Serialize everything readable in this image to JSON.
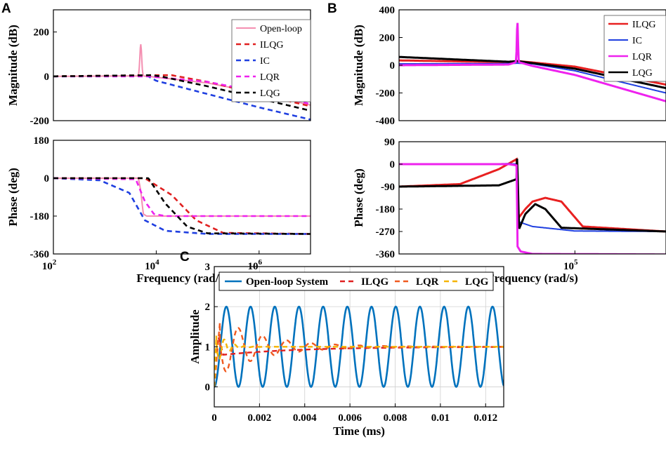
{
  "panels": {
    "A": "A",
    "B": "B",
    "C": "C"
  },
  "chart_data": [
    {
      "id": "A-magnitude",
      "type": "line",
      "xscale": "log",
      "xlim": [
        100,
        10000000
      ],
      "ylim": [
        -200,
        300
      ],
      "ylabel": "Magnitude (dB)",
      "yticks": [
        {
          "v": 200,
          "t": "200"
        },
        {
          "v": 0,
          "t": "0"
        },
        {
          "v": -200,
          "t": "-200"
        }
      ],
      "legend": [
        "Open-loop",
        "ILQG",
        "IC",
        "LQR",
        "LQG"
      ],
      "series": [
        {
          "name": "Open-loop",
          "color": "#f48fb1",
          "dash": "",
          "width": 2,
          "resonance": {
            "x": 5000,
            "peak": 145,
            "w": 0.025
          },
          "points": [
            [
              100,
              0
            ],
            [
              5000,
              2
            ],
            [
              7000,
              0
            ],
            [
              100000,
              -30
            ],
            [
              1000000,
              -75
            ],
            [
              10000000,
              -130
            ]
          ]
        },
        {
          "name": "ILQG",
          "color": "#e02020",
          "dash": "7,5",
          "width": 2.6,
          "points": [
            [
              100,
              0
            ],
            [
              8000,
              5
            ],
            [
              20000,
              5
            ],
            [
              100000,
              -25
            ],
            [
              1000000,
              -80
            ],
            [
              10000000,
              -135
            ]
          ]
        },
        {
          "name": "IC",
          "color": "#1f3fe0",
          "dash": "7,5",
          "width": 2.6,
          "points": [
            [
              100,
              0
            ],
            [
              7000,
              0
            ],
            [
              10000,
              -20
            ],
            [
              100000,
              -80
            ],
            [
              1000000,
              -140
            ],
            [
              10000000,
              -195
            ]
          ]
        },
        {
          "name": "LQR",
          "color": "#ee22ee",
          "dash": "7,5",
          "width": 2.6,
          "points": [
            [
              100,
              0
            ],
            [
              7000,
              0
            ],
            [
              100000,
              -25
            ],
            [
              1000000,
              -70
            ],
            [
              10000000,
              -125
            ]
          ]
        },
        {
          "name": "LQG",
          "color": "#000000",
          "dash": "7,5",
          "width": 2.6,
          "points": [
            [
              100,
              0
            ],
            [
              8000,
              5
            ],
            [
              12000,
              0
            ],
            [
              100000,
              -45
            ],
            [
              1000000,
              -100
            ],
            [
              10000000,
              -155
            ]
          ]
        }
      ]
    },
    {
      "id": "A-phase",
      "type": "line",
      "xscale": "log",
      "xlim": [
        100,
        10000000
      ],
      "ylim": [
        -360,
        180
      ],
      "ylabel": "Phase (deg)",
      "xlabel": "Frequency (rad/s)",
      "yticks": [
        {
          "v": 180,
          "t": "180"
        },
        {
          "v": 0,
          "t": "0"
        },
        {
          "v": -180,
          "t": "-180"
        },
        {
          "v": -360,
          "t": "-360"
        }
      ],
      "xticks": [
        {
          "base": "10",
          "exp": "2",
          "v": 100
        },
        {
          "base": "10",
          "exp": "4",
          "v": 10000
        },
        {
          "base": "10",
          "exp": "6",
          "v": 1000000
        }
      ],
      "series": [
        {
          "name": "Open-loop",
          "color": "#f48fb1",
          "dash": "",
          "width": 2,
          "points": [
            [
              100,
              0
            ],
            [
              4500,
              0
            ],
            [
              5000,
              -60
            ],
            [
              5600,
              -170
            ],
            [
              6500,
              -180
            ],
            [
              10000000,
              -180
            ]
          ]
        },
        {
          "name": "ILQG",
          "color": "#e02020",
          "dash": "7,5",
          "width": 2.6,
          "points": [
            [
              100,
              0
            ],
            [
              6000,
              0
            ],
            [
              20000,
              -80
            ],
            [
              60000,
              -200
            ],
            [
              200000,
              -260
            ],
            [
              10000000,
              -265
            ]
          ]
        },
        {
          "name": "IC",
          "color": "#1f3fe0",
          "dash": "7,5",
          "width": 2.6,
          "points": [
            [
              100,
              0
            ],
            [
              800,
              -10
            ],
            [
              3000,
              -70
            ],
            [
              6000,
              -200
            ],
            [
              15000,
              -250
            ],
            [
              100000,
              -265
            ],
            [
              10000000,
              -265
            ]
          ]
        },
        {
          "name": "LQR",
          "color": "#ee22ee",
          "dash": "7,5",
          "width": 2.6,
          "points": [
            [
              100,
              0
            ],
            [
              4000,
              -5
            ],
            [
              6000,
              -110
            ],
            [
              9000,
              -170
            ],
            [
              15000,
              -180
            ],
            [
              10000000,
              -180
            ]
          ]
        },
        {
          "name": "LQG",
          "color": "#000000",
          "dash": "7,5",
          "width": 2.6,
          "points": [
            [
              100,
              0
            ],
            [
              7000,
              0
            ],
            [
              15000,
              -120
            ],
            [
              40000,
              -230
            ],
            [
              100000,
              -262
            ],
            [
              10000000,
              -265
            ]
          ]
        }
      ]
    },
    {
      "id": "B-magnitude",
      "type": "line",
      "xscale": "log",
      "xlim": [
        12000,
        300000
      ],
      "ylim": [
        -400,
        400
      ],
      "ylabel": "Magnitude (dB)",
      "yticks": [
        {
          "v": 400,
          "t": "400"
        },
        {
          "v": 200,
          "t": "200"
        },
        {
          "v": 0,
          "t": "0"
        },
        {
          "v": -200,
          "t": "-200"
        },
        {
          "v": -400,
          "t": "-400"
        }
      ],
      "legend": [
        "ILQG",
        "IC",
        "LQR",
        "LQG"
      ],
      "series": [
        {
          "name": "ILQG",
          "color": "#e82020",
          "dash": "",
          "width": 3,
          "points": [
            [
              12000,
              35
            ],
            [
              45000,
              22
            ],
            [
              50000,
              30
            ],
            [
              60000,
              20
            ],
            [
              100000,
              -10
            ],
            [
              300000,
              -140
            ]
          ]
        },
        {
          "name": "IC",
          "color": "#1f3fe0",
          "dash": "",
          "width": 2,
          "points": [
            [
              12000,
              10
            ],
            [
              45000,
              12
            ],
            [
              50000,
              15
            ],
            [
              60000,
              10
            ],
            [
              100000,
              -40
            ],
            [
              300000,
              -200
            ]
          ]
        },
        {
          "name": "LQG",
          "color": "#000000",
          "dash": "",
          "width": 3,
          "points": [
            [
              12000,
              60
            ],
            [
              45000,
              25
            ],
            [
              50000,
              30
            ],
            [
              60000,
              15
            ],
            [
              100000,
              -25
            ],
            [
              300000,
              -165
            ]
          ]
        },
        {
          "name": "LQR",
          "color": "#ee22ee",
          "dash": "",
          "width": 3,
          "resonance": {
            "x": 50000,
            "peak": 320,
            "w": 0.004
          },
          "points": [
            [
              12000,
              0
            ],
            [
              45000,
              5
            ],
            [
              50000,
              25
            ],
            [
              60000,
              -5
            ],
            [
              100000,
              -70
            ],
            [
              300000,
              -260
            ]
          ]
        }
      ]
    },
    {
      "id": "B-phase",
      "type": "line",
      "xscale": "log",
      "xlim": [
        12000,
        300000
      ],
      "ylim": [
        -360,
        90
      ],
      "ylabel": "Phase (deg)",
      "xlabel": "Frequency (rad/s)",
      "yticks": [
        {
          "v": 90,
          "t": "90"
        },
        {
          "v": 0,
          "t": "0"
        },
        {
          "v": -90,
          "t": "-90"
        },
        {
          "v": -180,
          "t": "-180"
        },
        {
          "v": -270,
          "t": "-270"
        },
        {
          "v": -360,
          "t": "-360"
        }
      ],
      "xticks": [
        {
          "base": "10",
          "exp": "5",
          "v": 100000
        }
      ],
      "series": [
        {
          "name": "ILQG",
          "color": "#e82020",
          "dash": "",
          "width": 3,
          "points": [
            [
              12000,
              -90
            ],
            [
              25000,
              -80
            ],
            [
              40000,
              -20
            ],
            [
              49500,
              20
            ],
            [
              49700,
              10
            ],
            [
              50200,
              -220
            ],
            [
              55000,
              -180
            ],
            [
              60000,
              -150
            ],
            [
              70000,
              -135
            ],
            [
              85000,
              -150
            ],
            [
              110000,
              -250
            ],
            [
              300000,
              -270
            ]
          ]
        },
        {
          "name": "IC",
          "color": "#1f3fe0",
          "dash": "",
          "width": 2,
          "points": [
            [
              12000,
              0
            ],
            [
              30000,
              0
            ],
            [
              45000,
              2
            ],
            [
              49500,
              0
            ],
            [
              50300,
              -230
            ],
            [
              60000,
              -250
            ],
            [
              100000,
              -268
            ],
            [
              300000,
              -270
            ]
          ]
        },
        {
          "name": "LQG",
          "color": "#000000",
          "dash": "",
          "width": 3,
          "points": [
            [
              12000,
              -90
            ],
            [
              40000,
              -85
            ],
            [
              49600,
              -60
            ],
            [
              49800,
              30
            ],
            [
              50100,
              -30
            ],
            [
              51000,
              -260
            ],
            [
              55000,
              -200
            ],
            [
              62000,
              -160
            ],
            [
              70000,
              -180
            ],
            [
              85000,
              -255
            ],
            [
              300000,
              -270
            ]
          ]
        },
        {
          "name": "LQR",
          "color": "#ee22ee",
          "dash": "",
          "width": 3,
          "points": [
            [
              12000,
              0
            ],
            [
              30000,
              0
            ],
            [
              45000,
              0
            ],
            [
              49500,
              -5
            ],
            [
              50100,
              -330
            ],
            [
              52000,
              -350
            ],
            [
              60000,
              -360
            ],
            [
              300000,
              -362
            ]
          ]
        }
      ]
    },
    {
      "id": "C-step",
      "type": "line",
      "xscale": "linear",
      "xlim": [
        0,
        0.0128
      ],
      "ylim": [
        -0.5,
        3
      ],
      "ylabel": "Amplitude",
      "xlabel": "Time (ms)",
      "yticks": [
        {
          "v": 3,
          "t": "3"
        },
        {
          "v": 2,
          "t": "2"
        },
        {
          "v": 1,
          "t": "1"
        },
        {
          "v": 0,
          "t": "0"
        }
      ],
      "xticks": [
        {
          "v": 0,
          "t": "0"
        },
        {
          "v": 0.002,
          "t": "0.002"
        },
        {
          "v": 0.004,
          "t": "0.004"
        },
        {
          "v": 0.006,
          "t": "0.006"
        },
        {
          "v": 0.008,
          "t": "0.008"
        },
        {
          "v": 0.01,
          "t": "0.01"
        },
        {
          "v": 0.012,
          "t": "0.012"
        }
      ],
      "legend": [
        "Open-loop System",
        "ILQG",
        "LQR",
        "LQG"
      ],
      "series": [
        {
          "name": "Open-loop System",
          "color": "#0072bd",
          "dash": "",
          "width": 2.6,
          "model": {
            "kind": "cosine",
            "final": 1,
            "amp": 1,
            "period": 0.00107
          }
        },
        {
          "name": "ILQG",
          "color": "#e02020",
          "dash": "7,5",
          "width": 2.4,
          "model": {
            "kind": "ilqg"
          }
        },
        {
          "name": "LQR",
          "color": "#f05a20",
          "dash": "7,5",
          "width": 2.4,
          "model": {
            "kind": "damped",
            "final": 1,
            "amp": 0.8,
            "period": 0.00107,
            "tau": 0.002,
            "rise": 0.00025
          }
        },
        {
          "name": "LQG",
          "color": "#f5b400",
          "dash": "7,5",
          "width": 2.4,
          "model": {
            "kind": "damped",
            "final": 1,
            "amp": 0.55,
            "period": 0.00045,
            "tau": 0.0004,
            "rise": 0.0001
          }
        }
      ]
    }
  ]
}
